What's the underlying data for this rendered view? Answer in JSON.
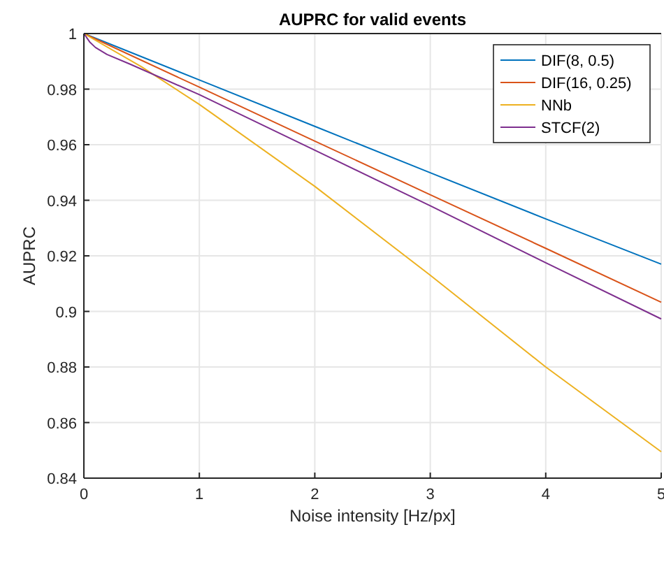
{
  "chart_data": {
    "type": "line",
    "title": "AUPRC for valid events",
    "xlabel": "Noise intensity [Hz/px]",
    "ylabel": "AUPRC",
    "xlim": [
      0,
      5
    ],
    "ylim": [
      0.84,
      1
    ],
    "xticks": [
      0,
      1,
      2,
      3,
      4,
      5
    ],
    "yticks": [
      0.84,
      0.86,
      0.88,
      {
        "value": 0.9,
        "label": "0.9"
      },
      0.92,
      0.94,
      0.96,
      0.98,
      1
    ],
    "grid": true,
    "legend": "top right",
    "line_style": "solid",
    "marker": "none",
    "series": [
      {
        "name": "DIF(8, 0.5)",
        "color": "#0072bd",
        "x": [
          0,
          1,
          2,
          3,
          4,
          5
        ],
        "values": [
          1,
          0.9833,
          0.9666,
          0.9499,
          0.9333,
          0.917
        ]
      },
      {
        "name": "DIF(16, 0.25)",
        "color": "#d95319",
        "x": [
          0,
          1,
          2,
          3,
          4,
          5
        ],
        "values": [
          1,
          0.9807,
          0.9613,
          0.942,
          0.9227,
          0.9033
        ]
      },
      {
        "name": "NNb",
        "color": "#edb120",
        "x": [
          0,
          0.5,
          1,
          2,
          3,
          4,
          5
        ],
        "values": [
          1,
          0.988,
          0.9745,
          0.945,
          0.913,
          0.88,
          0.8495
        ]
      },
      {
        "name": "STCF(2)",
        "color": "#7e2f8e",
        "x": [
          0,
          0.05,
          0.1,
          0.2,
          0.4,
          1,
          2,
          3,
          4,
          5
        ],
        "values": [
          1,
          0.997,
          0.995,
          0.9925,
          0.989,
          0.978,
          0.958,
          0.938,
          0.9175,
          0.8973
        ]
      }
    ]
  }
}
